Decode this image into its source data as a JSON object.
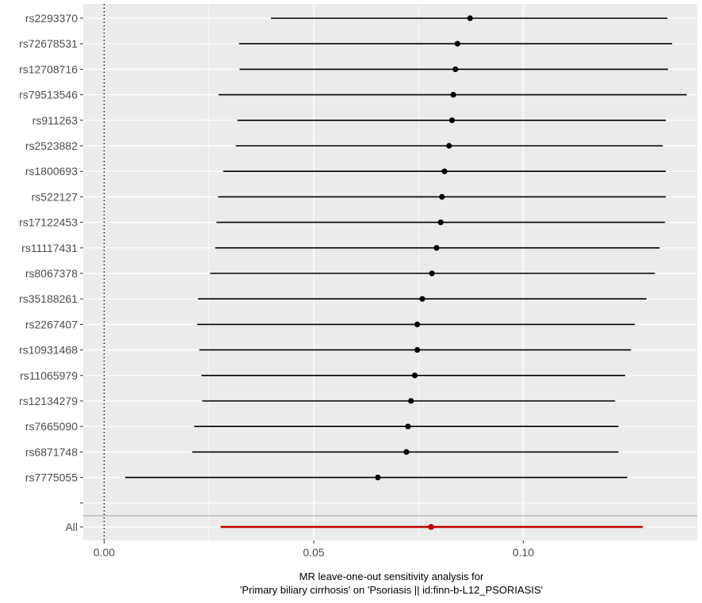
{
  "chart_data": {
    "type": "forest",
    "xlabel_line1": "MR leave-one-out sensitivity analysis for",
    "xlabel_line2": "'Primary biliary cirrhosis' on 'Psoriasis || id:finn-b-L12_PSORIASIS'",
    "xlim": [
      -0.005,
      0.1415
    ],
    "x_ticks": [
      {
        "value": 0.0,
        "label": "0.00"
      },
      {
        "value": 0.05,
        "label": "0.05"
      },
      {
        "value": 0.1,
        "label": "0.10"
      }
    ],
    "reference_line": 0,
    "colors": {
      "panel": "#ebebeb",
      "grid": "#ffffff",
      "point": "#000000",
      "summary": "#c00000"
    },
    "snps": [
      {
        "label": "rs2293370",
        "b": 0.0873,
        "lo": 0.0398,
        "hi": 0.1344
      },
      {
        "label": "rs72678531",
        "b": 0.0843,
        "lo": 0.0322,
        "hi": 0.1355
      },
      {
        "label": "rs12708716",
        "b": 0.0838,
        "lo": 0.0323,
        "hi": 0.1345
      },
      {
        "label": "rs79513546",
        "b": 0.0833,
        "lo": 0.0273,
        "hi": 0.139
      },
      {
        "label": "rs911263",
        "b": 0.083,
        "lo": 0.0318,
        "hi": 0.134
      },
      {
        "label": "rs2523882",
        "b": 0.0823,
        "lo": 0.0314,
        "hi": 0.1333
      },
      {
        "label": "rs1800693",
        "b": 0.0812,
        "lo": 0.0284,
        "hi": 0.134
      },
      {
        "label": "rs522127",
        "b": 0.0806,
        "lo": 0.0272,
        "hi": 0.134
      },
      {
        "label": "rs17122453",
        "b": 0.0803,
        "lo": 0.0268,
        "hi": 0.1338
      },
      {
        "label": "rs11117431",
        "b": 0.0793,
        "lo": 0.0265,
        "hi": 0.1325
      },
      {
        "label": "rs8067378",
        "b": 0.0782,
        "lo": 0.0253,
        "hi": 0.1314
      },
      {
        "label": "rs35188261",
        "b": 0.0759,
        "lo": 0.0224,
        "hi": 0.1294
      },
      {
        "label": "rs2267407",
        "b": 0.0747,
        "lo": 0.0222,
        "hi": 0.1266
      },
      {
        "label": "rs10931468",
        "b": 0.0747,
        "lo": 0.0227,
        "hi": 0.1257
      },
      {
        "label": "rs11065979",
        "b": 0.0741,
        "lo": 0.0232,
        "hi": 0.1243
      },
      {
        "label": "rs12134279",
        "b": 0.0732,
        "lo": 0.0234,
        "hi": 0.1219
      },
      {
        "label": "rs7665090",
        "b": 0.0725,
        "lo": 0.0215,
        "hi": 0.1227
      },
      {
        "label": "rs6871748",
        "b": 0.0721,
        "lo": 0.021,
        "hi": 0.1227
      },
      {
        "label": "rs7775055",
        "b": 0.0653,
        "lo": 0.005,
        "hi": 0.1248
      }
    ],
    "summary": {
      "label": "All",
      "b": 0.078,
      "lo": 0.0278,
      "hi": 0.1285
    }
  }
}
